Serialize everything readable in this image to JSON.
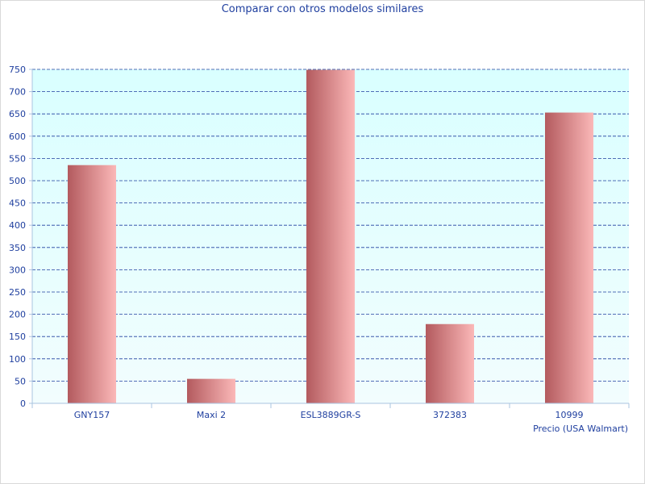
{
  "chart_data": {
    "type": "bar",
    "title": "Comparar con otros modelos similares",
    "xlabel": "Precio (USA Walmart)",
    "ylabel": "",
    "categories": [
      "GNY157",
      "Maxi 2",
      "ESL3889GR-S",
      "372383",
      "10999"
    ],
    "values": [
      535,
      55,
      749,
      178,
      653
    ],
    "ylim": [
      0,
      750
    ],
    "yticks": [
      0,
      50,
      100,
      150,
      200,
      250,
      300,
      350,
      400,
      450,
      500,
      550,
      600,
      650,
      700,
      750
    ],
    "grid": true,
    "colors": {
      "bar_dark": "#b35a5e",
      "bar_light": "#fbb8b8",
      "plot_bg_top": "#d9ffff",
      "plot_bg_bottom": "#f2fdfe",
      "grid": "#1f3f9f",
      "text": "#1f3f9f"
    }
  }
}
